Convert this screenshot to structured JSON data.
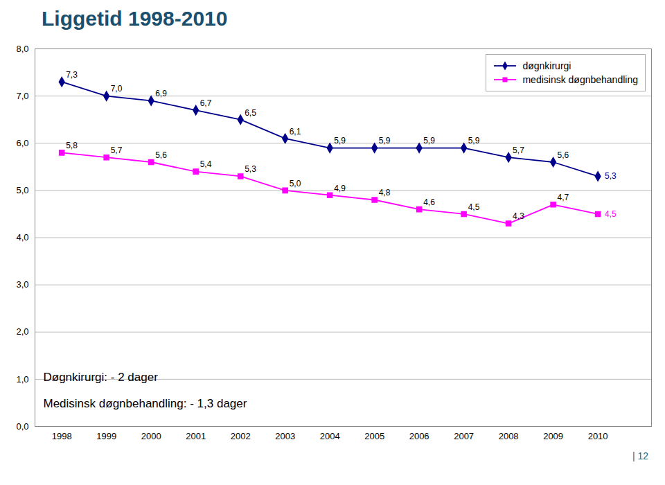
{
  "chart_data": {
    "type": "line",
    "title": "Liggetid 1998-2010",
    "x": [
      1998,
      1999,
      2000,
      2001,
      2002,
      2003,
      2004,
      2005,
      2006,
      2007,
      2008,
      2009,
      2010
    ],
    "series": [
      {
        "name": "døgnkirurgi",
        "color": "#00008b",
        "marker": "diamond",
        "values": [
          7.3,
          7.0,
          6.9,
          6.7,
          6.5,
          6.1,
          5.9,
          5.9,
          5.9,
          5.9,
          5.7,
          5.6,
          5.3
        ],
        "value_labels": [
          "7,3",
          "7,0",
          "6,9",
          "6,7",
          "6,5",
          "6,1",
          "5,9",
          "5,9",
          "5,9",
          "5,9",
          "5,7",
          "5,6",
          "5,3"
        ]
      },
      {
        "name": "medisinsk døgnbehandling",
        "color": "#ff00ff",
        "marker": "square",
        "values": [
          5.8,
          5.7,
          5.6,
          5.4,
          5.3,
          5.0,
          4.9,
          4.8,
          4.6,
          4.5,
          4.3,
          4.7,
          4.5
        ],
        "value_labels": [
          "5,8",
          "5,7",
          "5,6",
          "5,4",
          "5,3",
          "5,0",
          "4,9",
          "4,8",
          "4,6",
          "4,5",
          "4,3",
          "4,7",
          "4,5"
        ]
      }
    ],
    "xlim": [
      1997.4,
      2011.2
    ],
    "xticks": [
      1998,
      1999,
      2000,
      2001,
      2002,
      2003,
      2004,
      2005,
      2006,
      2007,
      2008,
      2009,
      2010
    ],
    "ylim": [
      0.0,
      8.0
    ],
    "yticks": [
      {
        "value": 0,
        "label": "0,0"
      },
      {
        "value": 1,
        "label": "1,0"
      },
      {
        "value": 2,
        "label": "2,0"
      },
      {
        "value": 3,
        "label": "3,0"
      },
      {
        "value": 4,
        "label": "4,0"
      },
      {
        "value": 5,
        "label": "5,0"
      },
      {
        "value": 6,
        "label": "6,0"
      },
      {
        "value": 7,
        "label": "7,0"
      },
      {
        "value": 8,
        "label": "8,0"
      }
    ],
    "grid": true,
    "legend": "upper right",
    "data_labels": true,
    "annotations": [
      "Døgnkirurgi: - 2 dager",
      "Medisinsk døgnbehandling: - 1,3 dager"
    ],
    "caption": "| 12"
  }
}
